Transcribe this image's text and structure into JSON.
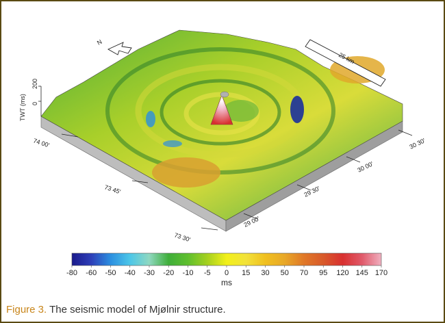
{
  "figure": {
    "north_label": "N",
    "scale_bar_label": "25 km",
    "vertical_axis_label": "TWT (ms)",
    "vertical_ticks": [
      "200",
      "0"
    ],
    "latitude_ticks": [
      "74 00'",
      "73 45'",
      "73 30'"
    ],
    "longitude_ticks": [
      "29 00'",
      "29 30'",
      "30 00'",
      "30 30'"
    ]
  },
  "colorbar": {
    "ticks": [
      "-80",
      "-60",
      "-50",
      "-40",
      "-30",
      "-20",
      "-10",
      "-5",
      "0",
      "15",
      "30",
      "50",
      "70",
      "95",
      "120",
      "145",
      "170"
    ],
    "units": "ms",
    "colors": [
      "#1a1a8c",
      "#2e3fb8",
      "#2c8fe0",
      "#4cc6e8",
      "#8fd8c0",
      "#3fae3a",
      "#5fbf2e",
      "#a5d01f",
      "#f2f01a",
      "#f2e23a",
      "#f0c020",
      "#e8a828",
      "#e07828",
      "#d85a2a",
      "#d83030",
      "#e05a6a",
      "#f0b0c0"
    ]
  },
  "caption": {
    "label": "Figure 3.",
    "text": "The seismic model of Mjølnir structure."
  }
}
